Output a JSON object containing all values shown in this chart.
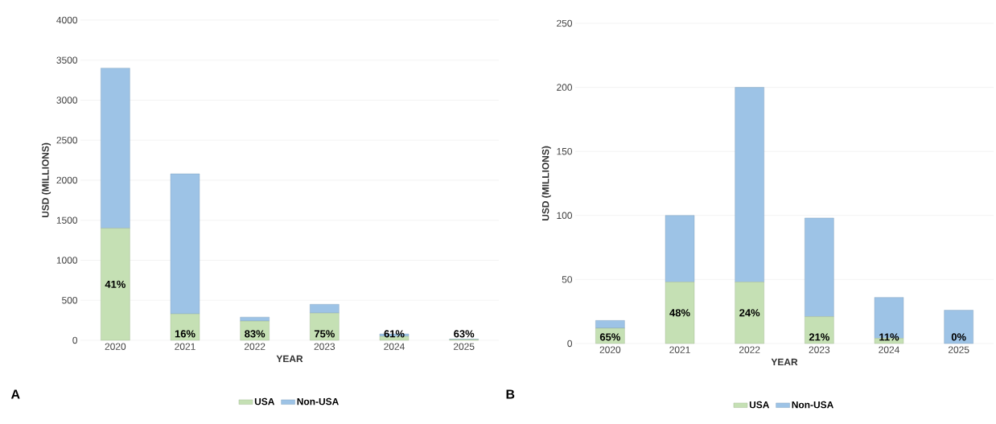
{
  "chart_data": [
    {
      "type": "bar",
      "stacked": true,
      "xlabel": "YEAR",
      "ylabel": "USD (MILLIONS)",
      "categories": [
        "2020",
        "2021",
        "2022",
        "2023",
        "2024",
        "2025"
      ],
      "series": [
        {
          "name": "USA",
          "color": "#c5e0b4",
          "values": [
            1400,
            330,
            240,
            340,
            50,
            10
          ]
        },
        {
          "name": "Non-USA",
          "color": "#9dc3e6",
          "values": [
            2000,
            1750,
            50,
            110,
            30,
            5
          ]
        }
      ],
      "ylim": [
        0,
        4000
      ],
      "yticks": [
        0,
        500,
        1000,
        1500,
        2000,
        2500,
        3000,
        3500,
        4000
      ],
      "grid": "y",
      "legend": "bottom",
      "annotations": [
        "A",
        "41%",
        "16%",
        "83%",
        "75%",
        "61%",
        "63%"
      ]
    },
    {
      "type": "bar",
      "stacked": true,
      "xlabel": "YEAR",
      "ylabel": "USD (MILLIONS)",
      "categories": [
        "2020",
        "2021",
        "2022",
        "2023",
        "2024",
        "2025"
      ],
      "series": [
        {
          "name": "USA",
          "color": "#c5e0b4",
          "values": [
            12,
            48,
            48,
            21,
            4,
            0
          ]
        },
        {
          "name": "Non-USA",
          "color": "#9dc3e6",
          "values": [
            6,
            52,
            152,
            77,
            32,
            26
          ]
        }
      ],
      "ylim": [
        0,
        250
      ],
      "yticks": [
        0,
        50,
        100,
        150,
        200,
        250
      ],
      "grid": "y",
      "legend": "bottom",
      "annotations": [
        "B",
        "65%",
        "48%",
        "24%",
        "21%",
        "11%",
        "0%"
      ]
    }
  ]
}
